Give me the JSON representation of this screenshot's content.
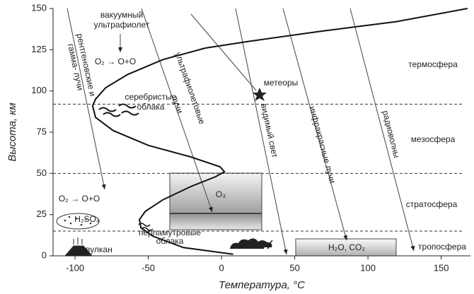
{
  "chart_data": {
    "type": "line",
    "xlabel": "Температура, °C",
    "ylabel": "Высота, км",
    "x": [
      8,
      -26,
      -47,
      -55,
      -56,
      -52,
      -40,
      -21,
      -4,
      2,
      -1,
      -21,
      -50,
      -74,
      -86,
      -88,
      -86,
      -79,
      -64,
      -40,
      -11,
      18,
      66,
      119,
      168
    ],
    "values": [
      1,
      5,
      12,
      17,
      22,
      27,
      34,
      42,
      48,
      51,
      54,
      60,
      67,
      76,
      84,
      91,
      95,
      102,
      110,
      119,
      126,
      130,
      136,
      142,
      150
    ],
    "color": "#111",
    "xlim": [
      -115,
      170
    ],
    "ylim": [
      0,
      150
    ],
    "xticks": [
      -100,
      -50,
      0,
      50,
      100,
      150
    ],
    "yticks": [
      0,
      25,
      50,
      75,
      100,
      125,
      150
    ],
    "boundaries": [
      92,
      50,
      15
    ],
    "annotations": [
      "вакуумный",
      "ультрафиолет",
      "O₂ → O+O",
      "рентгеновские и",
      "гамма- лучи",
      "серебристые",
      "облака",
      "метеоры",
      "термосфера",
      "мезосфера",
      "стратосфера",
      "тропосфера",
      "ультрафиолетовые",
      "лучи",
      "видимый свет",
      "инфракрасные лучи",
      "радиоволны",
      "O₃",
      "H₂SO₄",
      "перламутровые",
      "облака",
      "вулкан",
      "H₂O, CO₂",
      "O₂ → O+O"
    ]
  }
}
